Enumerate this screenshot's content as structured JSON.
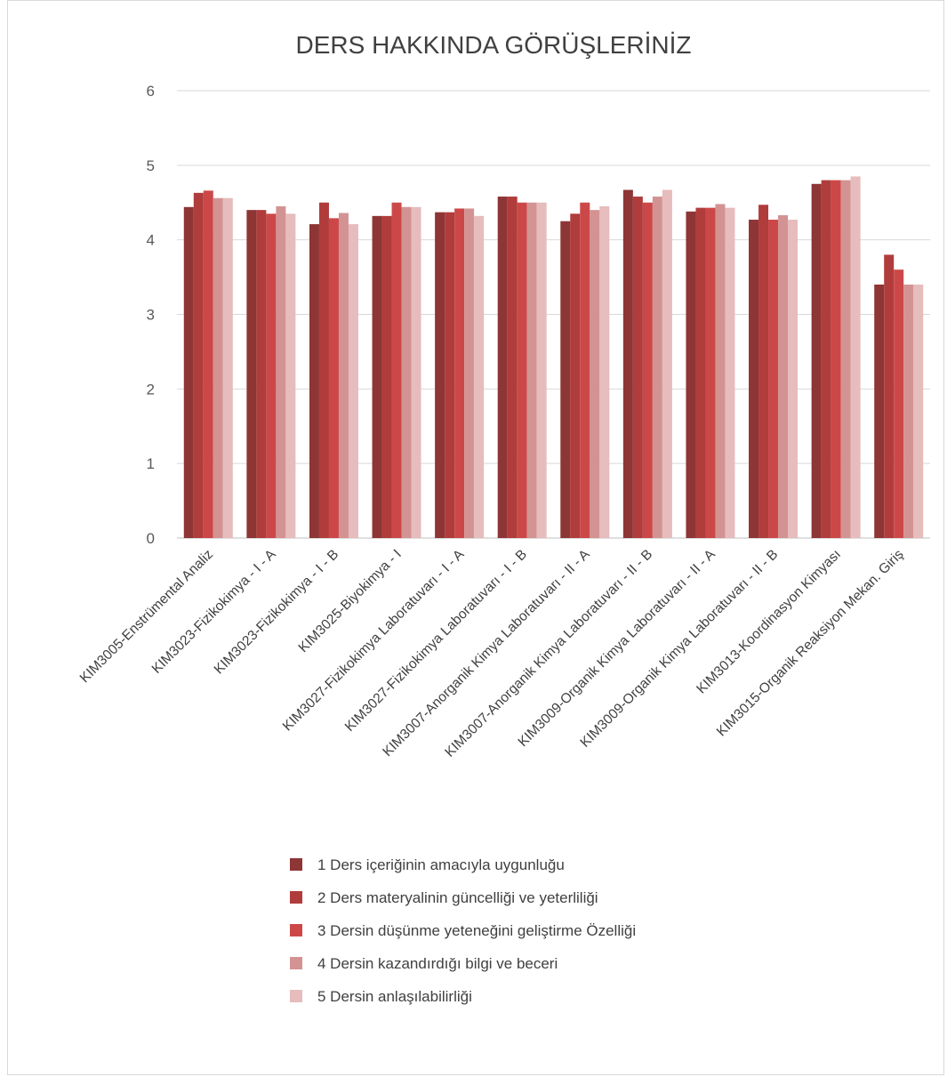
{
  "chart_data": {
    "type": "bar",
    "title": "DERS HAKKINDA GÖRÜŞLERİNİZ",
    "xlabel": "",
    "ylabel": "",
    "ylim": [
      0,
      6
    ],
    "yticks": [
      0,
      1,
      2,
      3,
      4,
      5,
      6
    ],
    "grid": true,
    "legend_position": "bottom",
    "categories": [
      "KIM3005-Enstrümental Analiz",
      "KIM3023-Fizikokimya - I - A",
      "KIM3023-Fizikokimya - I - B",
      "KIM3025-Biyokimya - I",
      "KIM3027-Fizikokimya Laboratuvarı - I - A",
      "KIM3027-Fizikokimya Laboratuvarı - I - B",
      "KIM3007-Anorganik Kimya Laboratuvarı - II - A",
      "KIM3007-Anorganik Kimya Laboratuvarı - II - B",
      "KIM3009-Organik Kimya Laboratuvarı - II - A",
      "KIM3009-Organik Kimya Laboratuvarı - II - B",
      "KIM3013-Koordinasyon Kimyası",
      "KIM3015-Organik Reaksiyon Mekan. Giriş"
    ],
    "series": [
      {
        "name": "1 Ders içeriğinin amacıyla uygunluğu",
        "color": "#8e3535",
        "values": [
          4.44,
          4.4,
          4.21,
          4.32,
          4.37,
          4.58,
          4.25,
          4.67,
          4.38,
          4.27,
          4.75,
          3.4
        ]
      },
      {
        "name": "2 Ders materyalinin güncelliği ve yeterliliği",
        "color": "#b03c3c",
        "values": [
          4.63,
          4.4,
          4.5,
          4.32,
          4.37,
          4.58,
          4.35,
          4.58,
          4.43,
          4.47,
          4.8,
          3.8
        ]
      },
      {
        "name": "3 Dersin düşünme yeteneğini geliştirme Özelliği",
        "color": "#cc4848",
        "values": [
          4.66,
          4.35,
          4.29,
          4.5,
          4.42,
          4.5,
          4.5,
          4.5,
          4.43,
          4.27,
          4.8,
          3.6
        ]
      },
      {
        "name": "4 Dersin kazandırdığı bilgi ve beceri",
        "color": "#d39393",
        "values": [
          4.56,
          4.45,
          4.36,
          4.44,
          4.42,
          4.5,
          4.4,
          4.58,
          4.48,
          4.33,
          4.8,
          3.4
        ]
      },
      {
        "name": "5 Dersin anlaşılabilirliği",
        "color": "#e6bcbc",
        "values": [
          4.56,
          4.35,
          4.21,
          4.44,
          4.32,
          4.5,
          4.45,
          4.67,
          4.43,
          4.27,
          4.85,
          3.4
        ]
      }
    ]
  }
}
